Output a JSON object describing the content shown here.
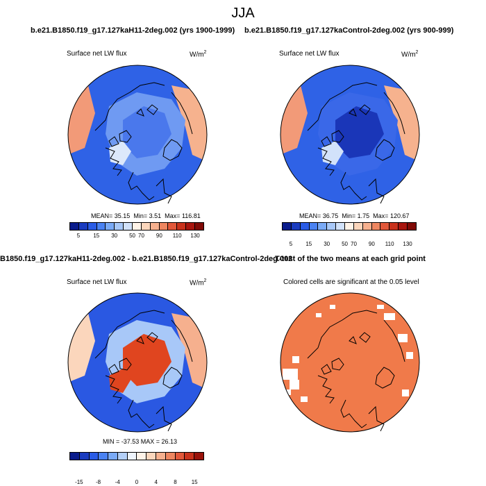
{
  "title": "JJA",
  "panels": [
    {
      "title": "b.e21.B1850.f19_g17.127kaH11-2deg.002 (yrs 1900-1999)",
      "variable": "Surface net LW flux",
      "units": "W/m",
      "units_exp": "2",
      "stats": {
        "mean_label": "MEAN=",
        "mean": "35.15",
        "min_label": "Min=",
        "min": "3.51",
        "max_label": "Max=",
        "max": "116.81"
      }
    },
    {
      "title": "b.e21.B1850.f19_g17.127kaControl-2deg.002 (yrs 900-999)",
      "variable": "Surface net LW flux",
      "units": "W/m",
      "units_exp": "2",
      "stats": {
        "mean_label": "MEAN=",
        "mean": "36.75",
        "min_label": "Min=",
        "min": "1.75",
        "max_label": "Max=",
        "max": "120.67"
      }
    },
    {
      "title": "B1850.f19_g17.127kaH11-2deg.002 - b.e21.B1850.f19_g17.127kaControl-2deg.002",
      "variable": "Surface net LW flux",
      "units": "W/m",
      "units_exp": "2",
      "stats_text": "MIN = -37.53 MAX = 26.13"
    },
    {
      "title": "T-test of the two means at each grid point",
      "subtitle": "Colored cells are significant at the 0.05 level"
    }
  ],
  "chart_data": {
    "type": "heatmap",
    "projection": "north-polar-stereographic",
    "colorbars": [
      {
        "ticks": [
          "5",
          "15",
          "30",
          "50",
          "70",
          "90",
          "110",
          "130"
        ],
        "colors": [
          "#0a1c8c",
          "#1a3cc0",
          "#2a5ce6",
          "#4a82f2",
          "#7aaaf6",
          "#a8c8f8",
          "#d2e2fa",
          "#fff3e8",
          "#fbd6bc",
          "#f6b08e",
          "#ee8660",
          "#e2583a",
          "#c9321c",
          "#a8150e",
          "#800a06"
        ]
      },
      {
        "ticks": [
          "5",
          "15",
          "30",
          "50",
          "70",
          "90",
          "110",
          "130"
        ],
        "colors": [
          "#0a1c8c",
          "#1a3cc0",
          "#2a5ce6",
          "#4a82f2",
          "#7aaaf6",
          "#a8c8f8",
          "#d2e2fa",
          "#fff3e8",
          "#fbd6bc",
          "#f6b08e",
          "#ee8660",
          "#e2583a",
          "#c9321c",
          "#a8150e",
          "#800a06"
        ]
      },
      {
        "ticks": [
          "-15",
          "-8",
          "-4",
          "0",
          "4",
          "8",
          "15"
        ],
        "colors": [
          "#0a1c8c",
          "#1a3cc0",
          "#2a5ce6",
          "#4a82f2",
          "#7aaaf6",
          "#b4d0f8",
          "#eef4fc",
          "#fff3e8",
          "#fbd6bc",
          "#f6b08e",
          "#ee8660",
          "#e2583a",
          "#c9321c",
          "#9a120a"
        ]
      }
    ],
    "fields": [
      {
        "ocean": "#2f62e6",
        "land": "#6f9af2",
        "arctic": "#4a78ec",
        "pacific": "#f29a78",
        "atlantic": "#f6b28e",
        "greenland": "#dce8fb"
      },
      {
        "ocean": "#2f62e6",
        "land": "#3a68e8",
        "arctic": "#1a36b8",
        "pacific": "#f29a78",
        "atlantic": "#f6b28e",
        "greenland": "#d2e2fa"
      },
      {
        "ocean": "#2a58e2",
        "land": "#a8c8f8",
        "arctic": "#e0451f",
        "pacific": "#fbd6bc",
        "atlantic": "#f6b08e",
        "greenland": "#e0451f"
      },
      {
        "fill": "#f07a4a",
        "blank": "#ffffff"
      }
    ]
  }
}
